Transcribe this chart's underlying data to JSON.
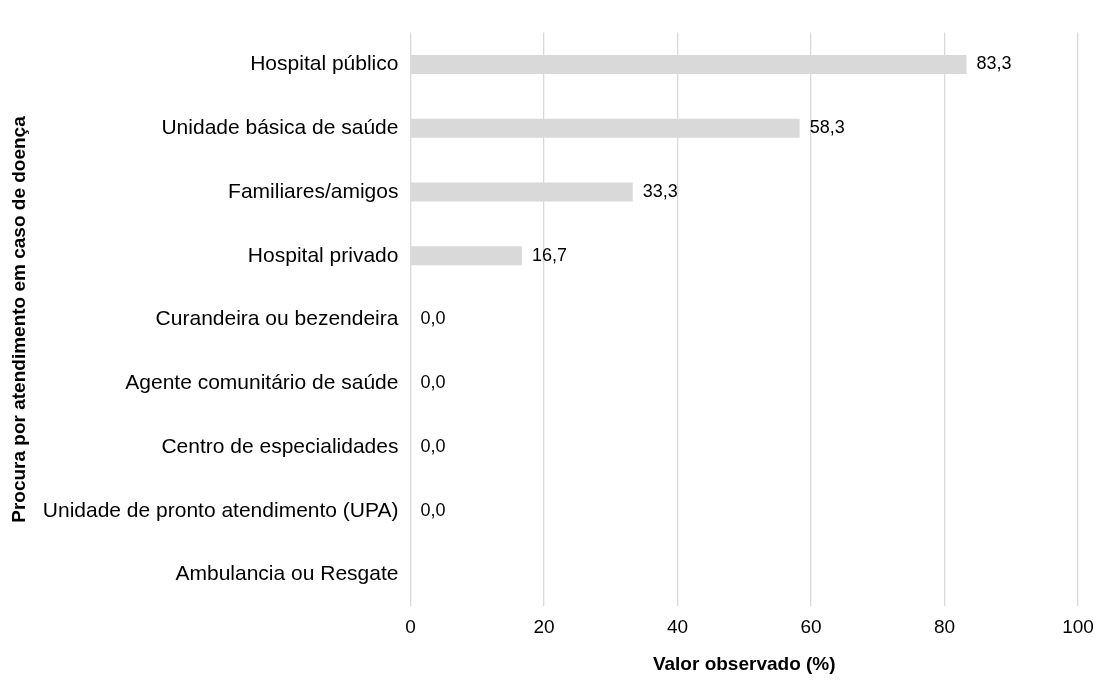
{
  "chart_data": {
    "type": "bar",
    "orientation": "horizontal",
    "xlabel": "Valor observado (%)",
    "ylabel": "Procura por atendimento em caso de doença",
    "categories": [
      "Hospital público",
      "Unidade básica de saúde",
      "Familiares/amigos",
      "Hospital privado",
      "Curandeira ou bezendeira",
      "Agente comunitário de saúde",
      "Centro de especialidades",
      "Unidade de pronto atendimento (UPA)",
      "Ambulancia ou Resgate"
    ],
    "values": [
      83.3,
      58.3,
      33.3,
      16.7,
      0,
      0,
      0,
      0,
      null
    ],
    "value_labels": [
      "83,3",
      "58,3",
      "33,3",
      "16,7",
      "0,0",
      "0,0",
      "0,0",
      "0,0",
      null
    ],
    "color": "#d9d9d9",
    "xlim": [
      0,
      100
    ],
    "xticks": [
      0,
      20,
      40,
      60,
      80,
      100
    ],
    "grid": "x",
    "legend": false
  }
}
